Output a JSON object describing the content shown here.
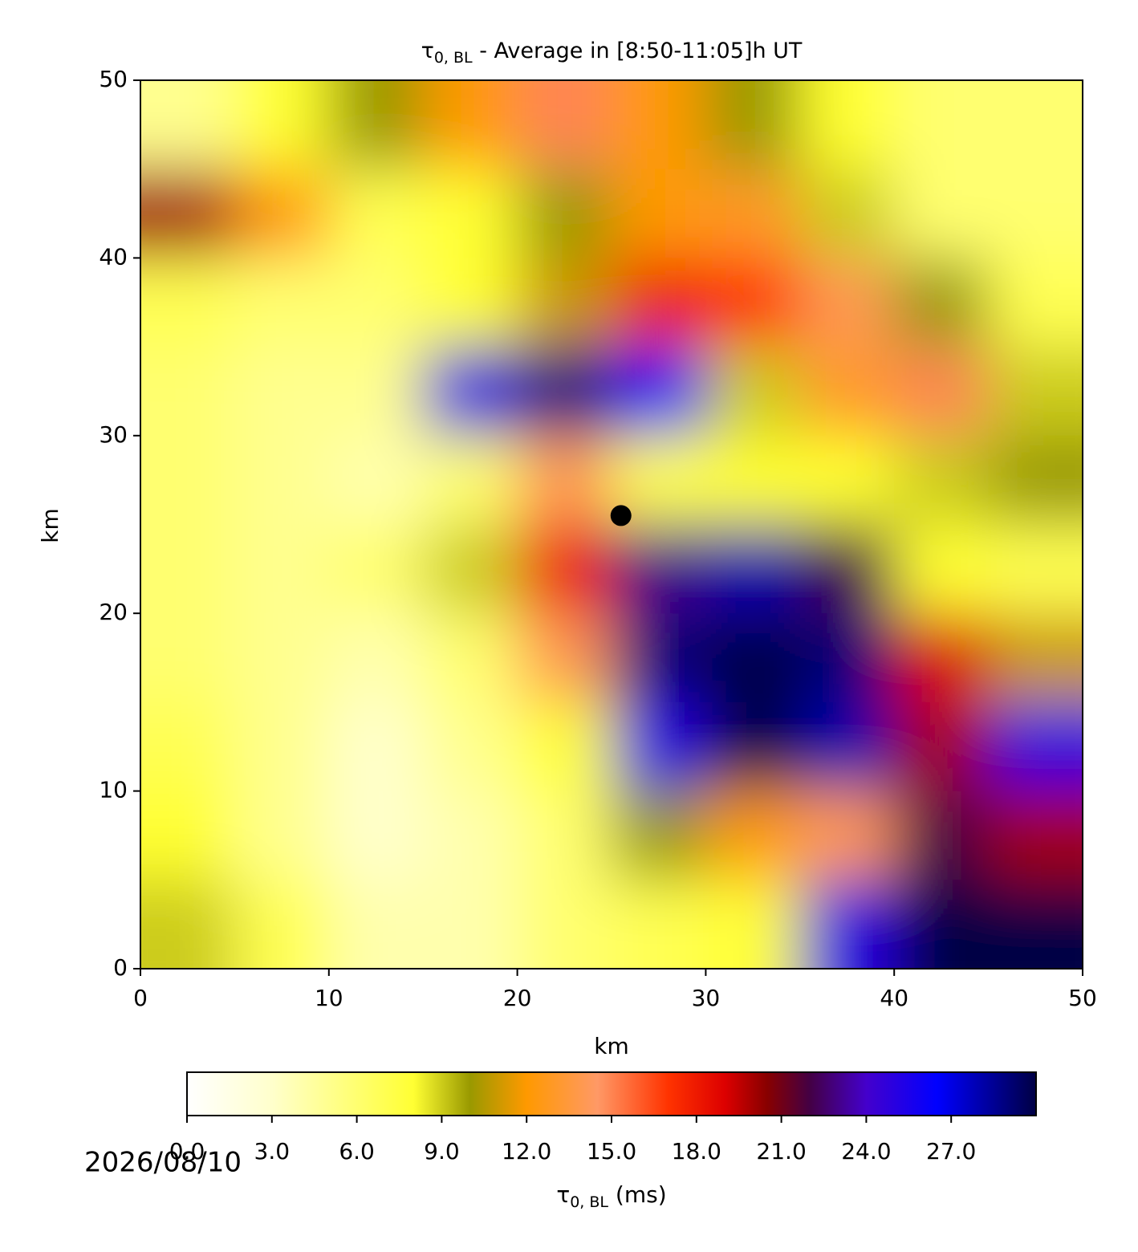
{
  "chart_data": {
    "type": "heatmap",
    "title": {
      "symbol": "τ",
      "subscript": "0, BL",
      "text": " - Average in [8:50-11:05]h UT"
    },
    "xlabel": "km",
    "ylabel": "km",
    "xlim": [
      0,
      50
    ],
    "ylim": [
      0,
      50
    ],
    "xticks": [
      0,
      10,
      20,
      30,
      40,
      50
    ],
    "yticks": [
      0,
      10,
      20,
      30,
      40,
      50
    ],
    "z": [
      [
        5,
        8,
        10,
        12,
        15,
        12,
        10,
        8,
        6,
        6
      ],
      [
        20,
        12,
        7,
        8,
        10,
        12,
        13,
        9,
        6,
        6
      ],
      [
        7,
        6,
        6,
        8,
        11,
        18,
        17,
        14,
        10,
        7
      ],
      [
        6,
        5,
        5,
        25,
        29,
        26,
        9,
        13,
        15,
        9
      ],
      [
        6,
        5,
        4,
        6,
        14,
        7,
        8,
        8,
        9,
        10
      ],
      [
        6,
        5,
        6,
        9,
        18,
        23,
        28,
        22,
        8,
        7
      ],
      [
        6,
        5,
        4,
        6,
        14,
        29,
        30,
        29,
        19,
        11
      ],
      [
        7,
        5,
        3,
        5,
        8,
        25,
        30,
        28,
        20,
        25
      ],
      [
        8,
        5,
        3,
        4,
        6,
        10,
        12,
        14,
        22,
        20
      ],
      [
        9,
        7,
        4,
        4,
        6,
        7,
        8,
        25,
        30,
        30
      ]
    ],
    "marker": {
      "x": 25.5,
      "y": 25.5,
      "color": "#000000"
    },
    "colorbar": {
      "lim": [
        0,
        30
      ],
      "ticks": [
        {
          "value": 0,
          "label": "0.0"
        },
        {
          "value": 3,
          "label": "3.0"
        },
        {
          "value": 6,
          "label": "6.0"
        },
        {
          "value": 9,
          "label": "9.0"
        },
        {
          "value": 12,
          "label": "12.0"
        },
        {
          "value": 15,
          "label": "15.0"
        },
        {
          "value": 18,
          "label": "18.0"
        },
        {
          "value": 21,
          "label": "21.0"
        },
        {
          "value": 24,
          "label": "24.0"
        },
        {
          "value": 27,
          "label": "27.0"
        }
      ],
      "label": {
        "symbol": "τ",
        "subscript": "0, BL",
        "text": " (ms)"
      },
      "stops": [
        {
          "value": 0,
          "color": "#ffffff"
        },
        {
          "value": 3,
          "color": "#ffffcc"
        },
        {
          "value": 8,
          "color": "#ffff33"
        },
        {
          "value": 10,
          "color": "#999900"
        },
        {
          "value": 12,
          "color": "#ff9900"
        },
        {
          "value": 14.5,
          "color": "#ff9966"
        },
        {
          "value": 17,
          "color": "#ff3300"
        },
        {
          "value": 19,
          "color": "#dd0000"
        },
        {
          "value": 20.5,
          "color": "#880000"
        },
        {
          "value": 22,
          "color": "#440044"
        },
        {
          "value": 24,
          "color": "#4400cc"
        },
        {
          "value": 26.5,
          "color": "#0000ff"
        },
        {
          "value": 30,
          "color": "#000044"
        }
      ]
    },
    "date": "2026/08/10"
  }
}
